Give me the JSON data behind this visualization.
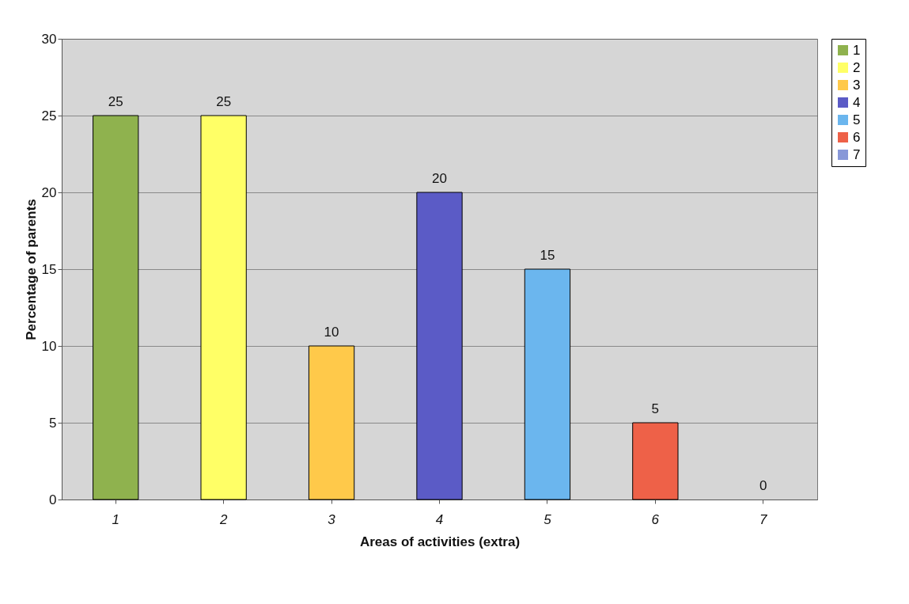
{
  "chart_data": {
    "type": "bar",
    "xlabel": "Areas of activities (extra)",
    "ylabel": "Percentage of parents",
    "categories": [
      "1",
      "2",
      "3",
      "4",
      "5",
      "6",
      "7"
    ],
    "series": [
      {
        "name": "1",
        "color": "#8fb24e",
        "values": [
          25,
          null,
          null,
          null,
          null,
          null,
          null
        ]
      },
      {
        "name": "2",
        "color": "#ffff66",
        "values": [
          null,
          25,
          null,
          null,
          null,
          null,
          null
        ]
      },
      {
        "name": "3",
        "color": "#ffc94a",
        "values": [
          null,
          null,
          10,
          null,
          null,
          null,
          null
        ]
      },
      {
        "name": "4",
        "color": "#5b5bc6",
        "values": [
          null,
          null,
          null,
          20,
          null,
          null,
          null
        ]
      },
      {
        "name": "5",
        "color": "#6bb6ee",
        "values": [
          null,
          null,
          null,
          null,
          15,
          null,
          null
        ]
      },
      {
        "name": "6",
        "color": "#ee6148",
        "values": [
          null,
          null,
          null,
          null,
          null,
          5,
          null
        ]
      },
      {
        "name": "7",
        "color": "#8898d8",
        "values": [
          null,
          null,
          null,
          null,
          null,
          null,
          0
        ]
      }
    ],
    "ylim": [
      0,
      30
    ],
    "yticks": [
      0,
      5,
      10,
      15,
      20,
      25,
      30
    ],
    "grid": "y",
    "legend": "right",
    "data_labels": true
  }
}
